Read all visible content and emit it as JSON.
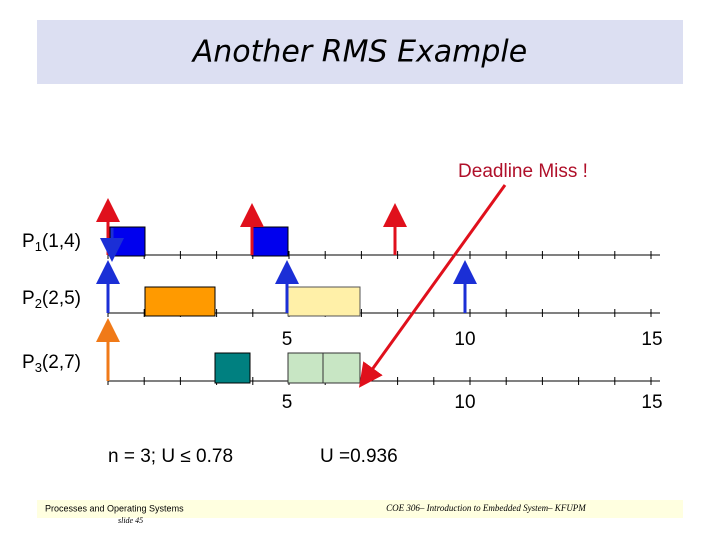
{
  "title": "Another RMS Example",
  "annotation": "Deadline Miss !",
  "processes": [
    {
      "name": "P",
      "sub": "1",
      "params": "(1,4)"
    },
    {
      "name": "P",
      "sub": "2",
      "params": "(2,5)"
    },
    {
      "name": "P",
      "sub": "3",
      "params": "(2,7)"
    }
  ],
  "time_labels": [
    [
      "5",
      "10",
      "15"
    ],
    [
      "5",
      "10",
      "15"
    ]
  ],
  "notes": [
    "n = 3;  U ≤ 0.78",
    "U =0.936"
  ],
  "footer": {
    "left": [
      "Processes and Operating Systems",
      "slide 45"
    ],
    "right": "COE 306– Introduction to Embedded System– KFUPM"
  }
}
